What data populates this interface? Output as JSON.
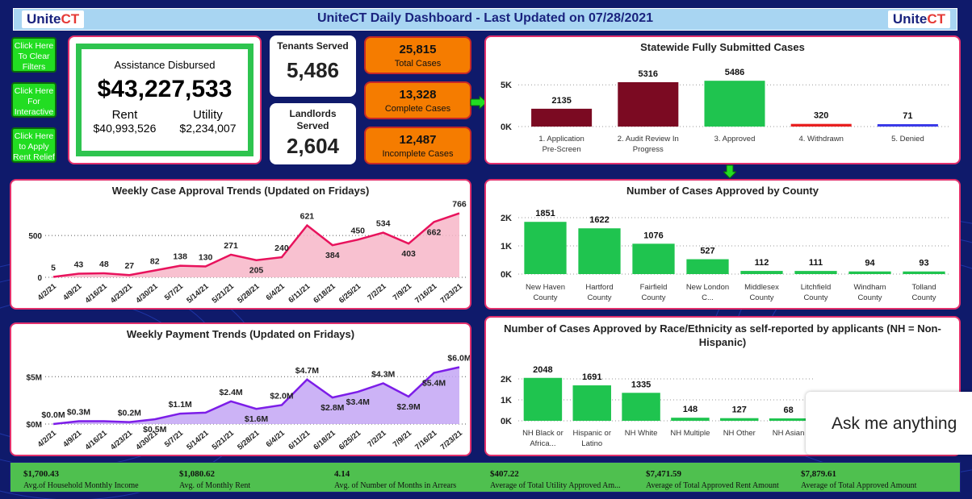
{
  "header": {
    "title": "UniteCT Daily Dashboard - Last Updated on 07/28/2021",
    "logo_left": "Unite",
    "logo_left_ct": "CT",
    "logo_right": "Unite",
    "logo_right_ct": "CT"
  },
  "buttons": [
    {
      "label": "Click Here To Clear Filters"
    },
    {
      "label": "Click Here For Interactive"
    },
    {
      "label": "Click Here to Apply Rent Relief"
    }
  ],
  "assistance": {
    "title": "Assistance Disbursed",
    "total": "$43,227,533",
    "rent_label": "Rent",
    "rent_value": "$40,993,526",
    "utility_label": "Utility",
    "utility_value": "$2,234,007"
  },
  "tenants": {
    "title": "Tenants Served",
    "value": "5,486"
  },
  "landlords": {
    "title": "Landlords Served",
    "value": "2,604"
  },
  "cases": [
    {
      "value": "25,815",
      "label": "Total Cases"
    },
    {
      "value": "13,328",
      "label": "Complete Cases"
    },
    {
      "value": "12,487",
      "label": "Incomplete Cases"
    }
  ],
  "colors": {
    "background": "#0f1a6b",
    "border": "#e2306c",
    "green": "#1fc44f",
    "maroon": "#7b0a22",
    "orange": "#f57c00",
    "pink": "#e8125c",
    "purple": "#7c1de8"
  },
  "chart_data": [
    {
      "type": "bar",
      "title": "Statewide Fully Submitted Cases",
      "categories": [
        "1. Application Pre-Screen",
        "2. Audit Review In Progress",
        "3. Approved",
        "4. Withdrawn",
        "5. Denied"
      ],
      "values": [
        2135,
        5316,
        5486,
        320,
        71
      ],
      "bar_colors": [
        "#7b0a22",
        "#7b0a22",
        "#1fc44f",
        "#e82020",
        "#3a3ae8"
      ],
      "yticks": [
        {
          "v": 0,
          "label": "0K"
        },
        {
          "v": 5000,
          "label": "5K"
        }
      ],
      "ylim": [
        0,
        5600
      ]
    },
    {
      "type": "bar",
      "title": "Number of Cases Approved by County",
      "categories": [
        "New Haven County",
        "Hartford County",
        "Fairfield County",
        "New London C...",
        "Middlesex County",
        "Litchfield County",
        "Windham County",
        "Tolland County"
      ],
      "values": [
        1851,
        1622,
        1076,
        527,
        112,
        111,
        94,
        93
      ],
      "yticks": [
        {
          "v": 0,
          "label": "0K"
        },
        {
          "v": 1000,
          "label": "1K"
        },
        {
          "v": 2000,
          "label": "2K"
        }
      ],
      "ylim": [
        0,
        2000
      ]
    },
    {
      "type": "bar",
      "title": "Number of Cases Approved by Race/Ethnicity as self-reported by applicants (NH = Non-Hispanic)",
      "categories": [
        "NH Black or Africa...",
        "Hispanic or Latino",
        "NH White",
        "NH Multiple",
        "NH Other",
        "NH Asian"
      ],
      "values": [
        2048,
        1691,
        1335,
        148,
        127,
        68
      ],
      "yticks": [
        {
          "v": 0,
          "label": "0K"
        },
        {
          "v": 1000,
          "label": "1K"
        },
        {
          "v": 2000,
          "label": "2K"
        }
      ],
      "ylim": [
        0,
        2000
      ]
    },
    {
      "type": "area",
      "title": "Weekly Case Approval Trends (Updated on Fridays)",
      "x": [
        "4/2/21",
        "4/9/21",
        "4/16/21",
        "4/23/21",
        "4/30/21",
        "5/7/21",
        "5/14/21",
        "5/21/21",
        "5/28/21",
        "6/4/21",
        "6/11/21",
        "6/18/21",
        "6/25/21",
        "7/2/21",
        "7/9/21",
        "7/16/21",
        "7/23/21"
      ],
      "values": [
        5,
        43,
        48,
        27,
        82,
        138,
        130,
        271,
        205,
        240,
        621,
        384,
        450,
        534,
        403,
        662,
        766
      ],
      "labels": [
        "5",
        "43",
        "48",
        "27",
        "82",
        "138",
        "130",
        "271",
        "205",
        "240",
        "621",
        "384",
        "450",
        "534",
        "403",
        "662",
        "766"
      ],
      "yticks": [
        {
          "v": 0,
          "label": "0"
        },
        {
          "v": 500,
          "label": "500"
        }
      ],
      "ylim": [
        0,
        800
      ]
    },
    {
      "type": "area",
      "title": "Weekly Payment Trends (Updated on Fridays)",
      "x": [
        "4/2/21",
        "4/9/21",
        "4/16/21",
        "4/23/21",
        "4/30/21",
        "5/7/21",
        "5/14/21",
        "5/21/21",
        "5/28/21",
        "6/4/21",
        "6/11/21",
        "6/18/21",
        "6/25/21",
        "7/2/21",
        "7/9/21",
        "7/16/21",
        "7/23/21"
      ],
      "values": [
        0.0,
        0.3,
        0.3,
        0.2,
        0.5,
        1.1,
        1.2,
        2.4,
        1.6,
        2.0,
        4.7,
        2.8,
        3.4,
        4.3,
        2.9,
        5.4,
        6.0
      ],
      "labels": [
        "$0.0M",
        "$0.3M",
        "",
        "$0.2M",
        "$0.5M",
        "$1.1M",
        "",
        "$2.4M",
        "$1.6M",
        "$2.0M",
        "$4.7M",
        "$2.8M",
        "$3.4M",
        "$4.3M",
        "$2.9M",
        "$5.4M",
        "$6.0M"
      ],
      "yticks": [
        {
          "v": 0,
          "label": "$0M"
        },
        {
          "v": 5,
          "label": "$5M"
        }
      ],
      "ylim": [
        0,
        6.3
      ]
    }
  ],
  "footer": [
    {
      "value": "$1,700.43",
      "label": "Avg.of Household Monthly Income"
    },
    {
      "value": "$1,080.62",
      "label": "Avg. of Monthly Rent"
    },
    {
      "value": "4.14",
      "label": "Avg. of Number of Months in Arrears"
    },
    {
      "value": "$407.22",
      "label": "Average of Total Utility Approved Am..."
    },
    {
      "value": "$7,471.59",
      "label": "Average of Total Approved Rent Amount"
    },
    {
      "value": "$7,879.61",
      "label": "Average of Total Approved Amount"
    }
  ],
  "chatbot": {
    "text": "Ask me anything"
  }
}
